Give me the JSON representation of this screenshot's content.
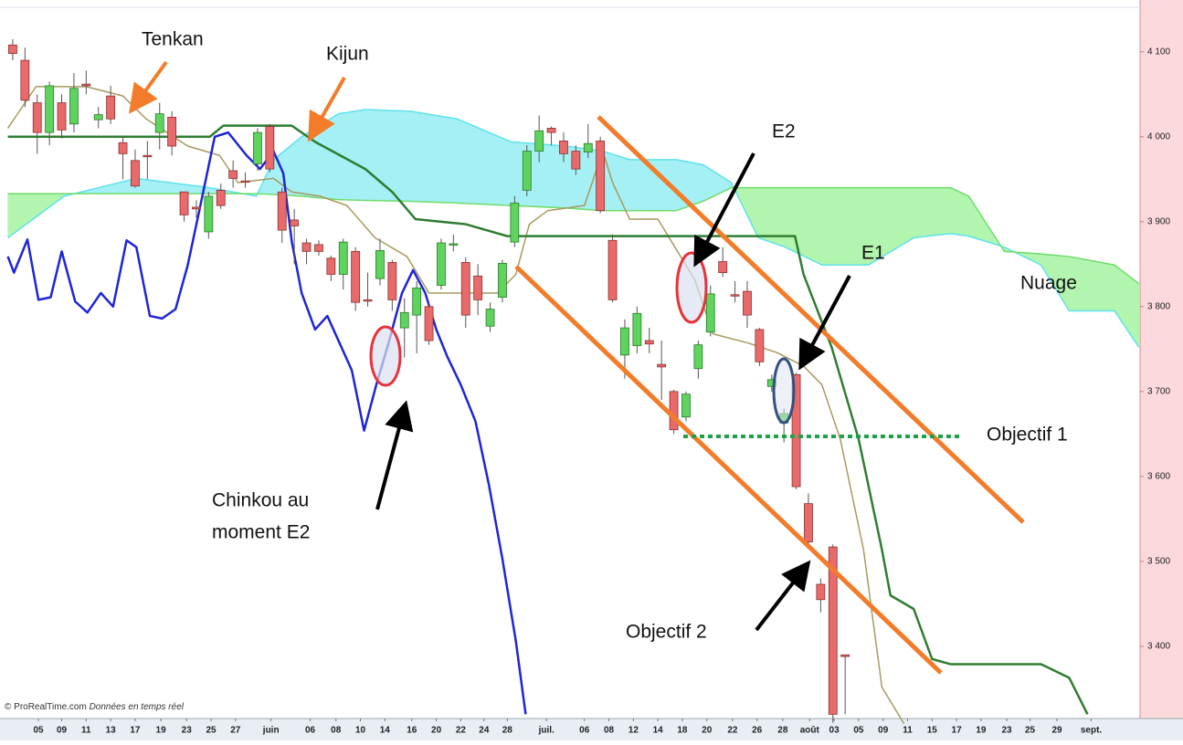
{
  "chart_data": {
    "type": "candlestick",
    "xlim": [
      -1.04,
      92.09
    ],
    "ylim": [
      3315,
      4161
    ],
    "yticks": [
      {
        "value": 4100,
        "label": "4 100"
      },
      {
        "value": 4000,
        "label": "4 000"
      },
      {
        "value": 3900,
        "label": "3 900"
      },
      {
        "value": 3800,
        "label": "3 800"
      },
      {
        "value": 3700,
        "label": "3 700"
      },
      {
        "value": 3600,
        "label": "3 600"
      },
      {
        "value": 3500,
        "label": "3 500"
      },
      {
        "value": 3400,
        "label": "3 400"
      }
    ],
    "xticks": [
      {
        "value": 2.1,
        "label": "05"
      },
      {
        "value": 4,
        "label": "09"
      },
      {
        "value": 6,
        "label": "11"
      },
      {
        "value": 8,
        "label": "13"
      },
      {
        "value": 10,
        "label": "17"
      },
      {
        "value": 12.1,
        "label": "19"
      },
      {
        "value": 14.2,
        "label": "23"
      },
      {
        "value": 16.2,
        "label": "25"
      },
      {
        "value": 18.2,
        "label": "27"
      },
      {
        "value": 21.1,
        "label": "juin"
      },
      {
        "value": 24.3,
        "label": "06"
      },
      {
        "value": 26.4,
        "label": "08"
      },
      {
        "value": 28.4,
        "label": "10"
      },
      {
        "value": 30.4,
        "label": "14"
      },
      {
        "value": 32.6,
        "label": "16"
      },
      {
        "value": 34.6,
        "label": "20"
      },
      {
        "value": 36.6,
        "label": "22"
      },
      {
        "value": 38.5,
        "label": "24"
      },
      {
        "value": 40.4,
        "label": "28"
      },
      {
        "value": 43.6,
        "label": "juil."
      },
      {
        "value": 46.7,
        "label": "06"
      },
      {
        "value": 48.7,
        "label": "08"
      },
      {
        "value": 50.7,
        "label": "12"
      },
      {
        "value": 52.7,
        "label": "14"
      },
      {
        "value": 54.7,
        "label": "18"
      },
      {
        "value": 56.7,
        "label": "20"
      },
      {
        "value": 58.8,
        "label": "22"
      },
      {
        "value": 60.8,
        "label": "26"
      },
      {
        "value": 62.9,
        "label": "28"
      },
      {
        "value": 65.1,
        "label": "août"
      },
      {
        "value": 67.1,
        "label": "03"
      },
      {
        "value": 69.1,
        "label": "05"
      },
      {
        "value": 71.1,
        "label": "09"
      },
      {
        "value": 73.1,
        "label": "11"
      },
      {
        "value": 75.1,
        "label": "15"
      },
      {
        "value": 77.1,
        "label": "17"
      },
      {
        "value": 79.1,
        "label": "19"
      },
      {
        "value": 81.2,
        "label": "23"
      },
      {
        "value": 83.1,
        "label": "25"
      },
      {
        "value": 85.3,
        "label": "29"
      },
      {
        "value": 88.1,
        "label": "sept."
      }
    ],
    "up_color": "#5ed35e",
    "down_color": "#e86a6a",
    "candles": {
      "x": [
        0,
        1,
        2,
        3,
        4,
        5,
        6,
        7,
        8,
        9,
        10,
        11,
        12,
        13,
        14,
        15,
        16,
        17,
        18,
        19,
        20,
        21,
        22,
        23,
        24,
        25,
        26,
        27,
        28,
        29,
        30,
        31,
        32,
        33,
        34,
        35,
        36,
        37,
        38,
        39,
        40,
        41,
        42,
        43,
        44,
        45,
        46,
        47,
        48,
        49,
        50,
        51,
        52,
        53,
        54,
        55,
        56,
        57,
        58,
        59,
        60,
        61,
        62,
        63,
        64,
        65,
        66,
        67,
        68
      ],
      "open": [
        4108,
        4090,
        4040,
        4005,
        4040,
        4015,
        4062,
        4020,
        4048,
        3993,
        3972,
        3978,
        4005,
        4023,
        3935,
        3917,
        3888,
        3937,
        3960,
        3948,
        3968,
        4012,
        3935,
        3902,
        3875,
        3873,
        3857,
        3838,
        3865,
        3808,
        3833,
        3852,
        3775,
        3790,
        3800,
        3825,
        3873,
        3852,
        3836,
        3777,
        3811,
        3876,
        3937,
        3983,
        4010,
        3995,
        3983,
        3982,
        3995,
        3878,
        3743,
        3754,
        3760,
        3732,
        3700,
        3670,
        3727,
        3770,
        3853,
        3814,
        3818,
        3773,
        3706,
        3663,
        3720,
        3568,
        3473,
        3517,
        3390
      ],
      "high": [
        4115,
        4105,
        4050,
        4065,
        4050,
        4075,
        4078,
        4035,
        4060,
        4000,
        3985,
        3995,
        4040,
        4030,
        3935,
        3925,
        3935,
        3945,
        3972,
        3958,
        4010,
        4015,
        3940,
        3915,
        3880,
        3878,
        3860,
        3880,
        3870,
        3840,
        3880,
        3855,
        3810,
        3830,
        3805,
        3880,
        3885,
        3858,
        3850,
        3805,
        3855,
        3930,
        3990,
        4025,
        4012,
        4005,
        3990,
        4015,
        4000,
        3885,
        3785,
        3800,
        3775,
        3760,
        3702,
        3700,
        3760,
        3825,
        3870,
        3830,
        3830,
        3775,
        3720,
        3680,
        3722,
        3580,
        3480,
        3520,
        3390
      ],
      "low": [
        4090,
        4035,
        3980,
        3990,
        3998,
        4005,
        4050,
        4010,
        4015,
        3950,
        3940,
        3950,
        3985,
        3978,
        3900,
        3905,
        3880,
        3915,
        3940,
        3940,
        3960,
        3958,
        3875,
        3850,
        3850,
        3860,
        3830,
        3820,
        3795,
        3800,
        3825,
        3795,
        3740,
        3745,
        3755,
        3820,
        3865,
        3775,
        3790,
        3770,
        3805,
        3870,
        3930,
        3970,
        3990,
        3970,
        3955,
        3975,
        3910,
        3805,
        3715,
        3745,
        3745,
        3690,
        3650,
        3665,
        3715,
        3765,
        3835,
        3805,
        3775,
        3730,
        3700,
        3640,
        3585,
        3520,
        3440,
        3310,
        3320
      ],
      "close": [
        4098,
        4043,
        4005,
        4060,
        4008,
        4057,
        4060,
        4026,
        4021,
        3980,
        3942,
        3977,
        4027,
        3989,
        3908,
        3915,
        3930,
        3919,
        3951,
        3947,
        4005,
        3962,
        3890,
        3895,
        3865,
        3865,
        3838,
        3876,
        3805,
        3807,
        3866,
        3808,
        3793,
        3822,
        3760,
        3875,
        3874,
        3790,
        3808,
        3797,
        3851,
        3922,
        3983,
        4007,
        4005,
        3980,
        3962,
        3992,
        3913,
        3808,
        3775,
        3792,
        3756,
        3729,
        3655,
        3697,
        3755,
        3815,
        3840,
        3813,
        3790,
        3735,
        3714,
        3674,
        3588,
        3523,
        3455,
        3320,
        3388
      ]
    },
    "series": [
      {
        "color": "#a89a5e",
        "width": 1.5,
        "x": [
          -0.4,
          1.9,
          6,
          9,
          10.9,
          14.3,
          16.9,
          18.4,
          21.3,
          22.8,
          25.1,
          27.3,
          29.6,
          32.2,
          34,
          36.3,
          39.6,
          41.1,
          42.2,
          43.7,
          46.7,
          48.2,
          49,
          50.4,
          52.7,
          55.7,
          57.2,
          60.1,
          62.4,
          64.6,
          66.1,
          67.6,
          69.5,
          71,
          72.8
        ],
        "values": [
          4010,
          4059,
          4059,
          4048,
          4021,
          3989,
          3978,
          3946,
          3951,
          3935,
          3930,
          3919,
          3881,
          3859,
          3816,
          3816,
          3816,
          3838,
          3897,
          3913,
          3919,
          3983,
          3946,
          3903,
          3903,
          3832,
          3768,
          3757,
          3746,
          3730,
          3708,
          3644,
          3514,
          3352,
          3309
        ]
      },
      {
        "color": "#2e7d32",
        "width": 2.5,
        "x": [
          -0.4,
          16.1,
          17.2,
          22.8,
          24.7,
          28.8,
          31,
          32.9,
          37,
          40.4,
          63.9,
          64.6,
          66.9,
          69.1,
          71,
          71.7,
          73.6,
          75.1,
          76.6,
          84,
          86.3,
          87.8
        ],
        "values": [
          4000,
          4000,
          4013,
          4013,
          3994,
          3962,
          3935,
          3903,
          3897,
          3883,
          3883,
          3838,
          3752,
          3644,
          3514,
          3460,
          3444,
          3385,
          3379,
          3379,
          3363,
          3320
        ]
      },
      {
        "color": "#1f24d8",
        "width": 2.5,
        "x": [
          -0.4,
          0.1,
          1.2,
          2.1,
          3.1,
          4,
          5.1,
          6.1,
          7.2,
          8.2,
          9.3,
          10.1,
          11.2,
          12.2,
          13.3,
          14.3,
          15.4,
          16.5,
          17.6,
          19.1,
          20.2,
          21.3,
          22.1,
          22.8,
          23.6,
          24.7,
          25.7,
          26.7,
          27.7,
          28.7,
          29.7,
          30.7,
          31.8,
          32.7,
          33.7,
          34.6,
          35.5,
          36.6,
          37.8,
          38.9,
          40,
          41.1,
          41.9
        ],
        "values": [
          3859,
          3840,
          3879,
          3808,
          3811,
          3865,
          3806,
          3793,
          3816,
          3800,
          3878,
          3870,
          3789,
          3786,
          3797,
          3849,
          3924,
          4000,
          4005,
          3978,
          3962,
          3983,
          3957,
          3876,
          3816,
          3773,
          3789,
          3757,
          3725,
          3654,
          3708,
          3757,
          3816,
          3843,
          3816,
          3773,
          3741,
          3708,
          3665,
          3590,
          3503,
          3406,
          3320
        ]
      }
    ],
    "cloud": {
      "above_color": "#a4f0f4",
      "below_color": "#b2f5ae",
      "a_color": "#5ee2ee",
      "b_color": "#6fdc6a",
      "x": [
        -0.4,
        4.2,
        10.1,
        16.1,
        19.9,
        21.3,
        23.6,
        26.6,
        28.8,
        32.5,
        36.3,
        40.7,
        45.2,
        48.2,
        50.4,
        54.2,
        56.4,
        58.7,
        60.9,
        63.1,
        66.1,
        69.9,
        73.6,
        76.6,
        78.1,
        81,
        84,
        86.3,
        90,
        92
      ],
      "span_a": [
        3881,
        3930,
        3951,
        3940,
        3930,
        3973,
        4000,
        4027,
        4032,
        4030,
        4021,
        3994,
        3989,
        3983,
        3973,
        3973,
        3967,
        3946,
        3881,
        3870,
        3849,
        3849,
        3881,
        3886,
        3883,
        3870,
        3849,
        3795,
        3795,
        3752
      ],
      "span_b": [
        3933,
        3933,
        3933,
        3933,
        3933,
        3932,
        3930,
        3926,
        3925,
        3924,
        3922,
        3919,
        3916,
        3913,
        3913,
        3913,
        3924,
        3940,
        3940,
        3940,
        3940,
        3940,
        3940,
        3940,
        3930,
        3865,
        3862,
        3859,
        3849,
        3827
      ]
    },
    "annotations": {
      "tenkan": "Tenkan",
      "kijun": "Kijun",
      "e2": "E2",
      "e1": "E1",
      "nuage": "Nuage",
      "objectif1": "Objectif 1",
      "objectif2": "Objectif 2",
      "chinkou": [
        "Chinkou au",
        "moment E2"
      ]
    },
    "footer": {
      "source": "© ProRealTime.com",
      "note": "Données en temps réel"
    }
  }
}
